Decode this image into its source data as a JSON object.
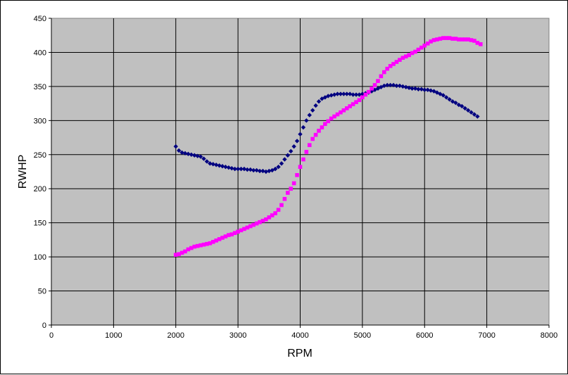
{
  "chart_data": {
    "type": "scatter",
    "title": "",
    "xlabel": "RPM",
    "ylabel": "RWHP",
    "xlim": [
      0,
      8000
    ],
    "ylim": [
      0,
      450
    ],
    "x_ticks": [
      0,
      1000,
      2000,
      3000,
      4000,
      5000,
      6000,
      7000,
      8000
    ],
    "y_ticks": [
      0,
      50,
      100,
      150,
      200,
      250,
      300,
      350,
      400,
      450
    ],
    "grid": true,
    "legend": "none",
    "plot_background": "#C0C0C0",
    "series": [
      {
        "color": "#000080",
        "marker": "diamond",
        "points": [
          [
            2000,
            262
          ],
          [
            2050,
            256
          ],
          [
            2100,
            253
          ],
          [
            2150,
            252
          ],
          [
            2200,
            251
          ],
          [
            2250,
            250
          ],
          [
            2300,
            249
          ],
          [
            2350,
            248
          ],
          [
            2400,
            247
          ],
          [
            2450,
            244
          ],
          [
            2500,
            240
          ],
          [
            2550,
            237
          ],
          [
            2600,
            236
          ],
          [
            2650,
            235
          ],
          [
            2700,
            234
          ],
          [
            2750,
            233
          ],
          [
            2800,
            232
          ],
          [
            2850,
            231
          ],
          [
            2900,
            230
          ],
          [
            2950,
            229
          ],
          [
            3000,
            229
          ],
          [
            3050,
            229
          ],
          [
            3100,
            229
          ],
          [
            3150,
            228
          ],
          [
            3200,
            228
          ],
          [
            3250,
            227
          ],
          [
            3300,
            227
          ],
          [
            3350,
            226
          ],
          [
            3400,
            226
          ],
          [
            3450,
            225
          ],
          [
            3500,
            226
          ],
          [
            3550,
            227
          ],
          [
            3600,
            229
          ],
          [
            3650,
            232
          ],
          [
            3700,
            237
          ],
          [
            3750,
            243
          ],
          [
            3800,
            249
          ],
          [
            3850,
            255
          ],
          [
            3900,
            262
          ],
          [
            3950,
            270
          ],
          [
            4000,
            280
          ],
          [
            4050,
            290
          ],
          [
            4100,
            300
          ],
          [
            4150,
            308
          ],
          [
            4200,
            315
          ],
          [
            4250,
            322
          ],
          [
            4300,
            328
          ],
          [
            4350,
            332
          ],
          [
            4400,
            334
          ],
          [
            4450,
            336
          ],
          [
            4500,
            337
          ],
          [
            4550,
            338
          ],
          [
            4600,
            339
          ],
          [
            4650,
            339
          ],
          [
            4700,
            339
          ],
          [
            4750,
            339
          ],
          [
            4800,
            339
          ],
          [
            4850,
            338
          ],
          [
            4900,
            338
          ],
          [
            4950,
            338
          ],
          [
            5000,
            339
          ],
          [
            5050,
            340
          ],
          [
            5100,
            341
          ],
          [
            5150,
            343
          ],
          [
            5200,
            345
          ],
          [
            5250,
            347
          ],
          [
            5300,
            349
          ],
          [
            5350,
            351
          ],
          [
            5400,
            352
          ],
          [
            5450,
            352
          ],
          [
            5500,
            352
          ],
          [
            5550,
            351
          ],
          [
            5600,
            351
          ],
          [
            5650,
            350
          ],
          [
            5700,
            349
          ],
          [
            5750,
            348
          ],
          [
            5800,
            347
          ],
          [
            5850,
            347
          ],
          [
            5900,
            346
          ],
          [
            5950,
            346
          ],
          [
            6000,
            345
          ],
          [
            6050,
            345
          ],
          [
            6100,
            344
          ],
          [
            6150,
            343
          ],
          [
            6200,
            341
          ],
          [
            6250,
            339
          ],
          [
            6300,
            337
          ],
          [
            6350,
            334
          ],
          [
            6400,
            331
          ],
          [
            6450,
            328
          ],
          [
            6500,
            326
          ],
          [
            6550,
            323
          ],
          [
            6600,
            321
          ],
          [
            6650,
            318
          ],
          [
            6700,
            315
          ],
          [
            6750,
            312
          ],
          [
            6800,
            309
          ],
          [
            6850,
            306
          ]
        ]
      },
      {
        "color": "#FF00FF",
        "marker": "square",
        "points": [
          [
            2000,
            103
          ],
          [
            2050,
            104
          ],
          [
            2100,
            106
          ],
          [
            2150,
            108
          ],
          [
            2200,
            111
          ],
          [
            2250,
            113
          ],
          [
            2300,
            115
          ],
          [
            2350,
            116
          ],
          [
            2400,
            117
          ],
          [
            2450,
            118
          ],
          [
            2500,
            119
          ],
          [
            2550,
            120
          ],
          [
            2600,
            122
          ],
          [
            2650,
            124
          ],
          [
            2700,
            126
          ],
          [
            2750,
            128
          ],
          [
            2800,
            130
          ],
          [
            2850,
            132
          ],
          [
            2900,
            133
          ],
          [
            2950,
            135
          ],
          [
            3000,
            137
          ],
          [
            3050,
            139
          ],
          [
            3100,
            141
          ],
          [
            3150,
            143
          ],
          [
            3200,
            145
          ],
          [
            3250,
            147
          ],
          [
            3300,
            149
          ],
          [
            3350,
            151
          ],
          [
            3400,
            153
          ],
          [
            3450,
            155
          ],
          [
            3500,
            158
          ],
          [
            3550,
            161
          ],
          [
            3600,
            164
          ],
          [
            3650,
            169
          ],
          [
            3700,
            176
          ],
          [
            3750,
            185
          ],
          [
            3800,
            194
          ],
          [
            3850,
            200
          ],
          [
            3900,
            208
          ],
          [
            3950,
            220
          ],
          [
            4000,
            232
          ],
          [
            4050,
            243
          ],
          [
            4100,
            254
          ],
          [
            4150,
            264
          ],
          [
            4200,
            273
          ],
          [
            4250,
            279
          ],
          [
            4300,
            285
          ],
          [
            4350,
            290
          ],
          [
            4400,
            295
          ],
          [
            4450,
            299
          ],
          [
            4500,
            303
          ],
          [
            4550,
            306
          ],
          [
            4600,
            309
          ],
          [
            4650,
            312
          ],
          [
            4700,
            315
          ],
          [
            4750,
            318
          ],
          [
            4800,
            321
          ],
          [
            4850,
            324
          ],
          [
            4900,
            327
          ],
          [
            4950,
            330
          ],
          [
            5000,
            334
          ],
          [
            5050,
            338
          ],
          [
            5100,
            342
          ],
          [
            5150,
            347
          ],
          [
            5200,
            352
          ],
          [
            5250,
            358
          ],
          [
            5300,
            365
          ],
          [
            5350,
            371
          ],
          [
            5400,
            376
          ],
          [
            5450,
            380
          ],
          [
            5500,
            383
          ],
          [
            5550,
            386
          ],
          [
            5600,
            389
          ],
          [
            5650,
            392
          ],
          [
            5700,
            394
          ],
          [
            5750,
            396
          ],
          [
            5800,
            399
          ],
          [
            5850,
            401
          ],
          [
            5900,
            404
          ],
          [
            5950,
            407
          ],
          [
            6000,
            410
          ],
          [
            6050,
            413
          ],
          [
            6100,
            416
          ],
          [
            6150,
            418
          ],
          [
            6200,
            419
          ],
          [
            6250,
            420
          ],
          [
            6300,
            421
          ],
          [
            6350,
            421
          ],
          [
            6400,
            421
          ],
          [
            6450,
            420
          ],
          [
            6500,
            420
          ],
          [
            6550,
            419
          ],
          [
            6600,
            419
          ],
          [
            6650,
            419
          ],
          [
            6700,
            419
          ],
          [
            6750,
            418
          ],
          [
            6800,
            417
          ],
          [
            6850,
            414
          ],
          [
            6900,
            412
          ]
        ]
      }
    ]
  }
}
